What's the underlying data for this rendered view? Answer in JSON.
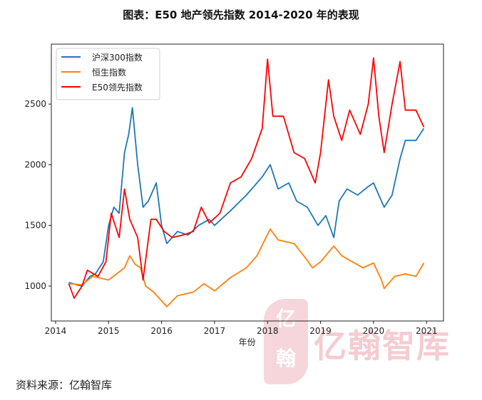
{
  "title": "图表：E50 地产领先指数 2014-2020 年的表现",
  "source": "资料来源：亿翰智库",
  "watermark": {
    "text": "亿翰智库",
    "logo": "亿翰"
  },
  "chart_data": {
    "type": "line",
    "title": "",
    "xlabel": "年份",
    "ylabel": "",
    "xlim": [
      2013.92,
      2021.32
    ],
    "ylim": [
      712,
      2994
    ],
    "xticks": [
      2014,
      2015,
      2016,
      2017,
      2018,
      2019,
      2020,
      2021
    ],
    "yticks": [
      1000,
      1500,
      2000,
      2500
    ],
    "grid": false,
    "legend": "top-left",
    "series": [
      {
        "name": "沪深300指数",
        "color": "#1f77b4",
        "x": [
          2014.25,
          2014.4,
          2014.5,
          2014.65,
          2014.75,
          2014.9,
          2015.0,
          2015.1,
          2015.2,
          2015.3,
          2015.38,
          2015.45,
          2015.55,
          2015.65,
          2015.75,
          2015.9,
          2016.0,
          2016.1,
          2016.3,
          2016.5,
          2016.7,
          2016.9,
          2017.0,
          2017.3,
          2017.6,
          2017.9,
          2018.05,
          2018.2,
          2018.4,
          2018.55,
          2018.75,
          2018.95,
          2019.1,
          2019.25,
          2019.35,
          2019.5,
          2019.7,
          2019.9,
          2020.0,
          2020.1,
          2020.2,
          2020.35,
          2020.5,
          2020.6,
          2020.8,
          2020.95
        ],
        "y": [
          1030,
          1010,
          1000,
          1080,
          1100,
          1200,
          1500,
          1650,
          1600,
          2100,
          2250,
          2470,
          2000,
          1650,
          1700,
          1850,
          1500,
          1350,
          1450,
          1420,
          1500,
          1550,
          1500,
          1620,
          1750,
          1900,
          2000,
          1800,
          1850,
          1700,
          1650,
          1500,
          1580,
          1400,
          1700,
          1800,
          1750,
          1820,
          1850,
          1750,
          1650,
          1750,
          2050,
          2200,
          2200,
          2300
        ]
      },
      {
        "name": "恒生指数",
        "color": "#ff7f0e",
        "x": [
          2014.25,
          2014.5,
          2014.7,
          2015.0,
          2015.3,
          2015.4,
          2015.5,
          2015.6,
          2015.7,
          2015.85,
          2016.1,
          2016.3,
          2016.6,
          2016.8,
          2017.0,
          2017.3,
          2017.6,
          2017.8,
          2018.05,
          2018.2,
          2018.5,
          2018.7,
          2018.85,
          2019.0,
          2019.25,
          2019.4,
          2019.6,
          2019.8,
          2020.0,
          2020.15,
          2020.2,
          2020.4,
          2020.6,
          2020.8,
          2020.95
        ],
        "y": [
          1020,
          1010,
          1080,
          1050,
          1150,
          1250,
          1180,
          1150,
          1000,
          950,
          830,
          920,
          950,
          1020,
          960,
          1070,
          1150,
          1250,
          1470,
          1380,
          1350,
          1240,
          1150,
          1200,
          1330,
          1250,
          1200,
          1150,
          1190,
          1050,
          980,
          1080,
          1100,
          1080,
          1190
        ]
      },
      {
        "name": "E50领先指数",
        "color": "#ff0000",
        "x": [
          2014.25,
          2014.35,
          2014.5,
          2014.6,
          2014.8,
          2014.95,
          2015.05,
          2015.2,
          2015.3,
          2015.4,
          2015.55,
          2015.65,
          2015.8,
          2015.9,
          2016.05,
          2016.2,
          2016.4,
          2016.6,
          2016.75,
          2016.9,
          2017.1,
          2017.3,
          2017.5,
          2017.7,
          2017.9,
          2018.0,
          2018.1,
          2018.3,
          2018.5,
          2018.7,
          2018.9,
          2019.0,
          2019.15,
          2019.25,
          2019.4,
          2019.55,
          2019.75,
          2019.9,
          2020.0,
          2020.1,
          2020.2,
          2020.35,
          2020.5,
          2020.6,
          2020.8,
          2020.95
        ],
        "y": [
          1020,
          900,
          1000,
          1130,
          1080,
          1200,
          1600,
          1400,
          1800,
          1550,
          1400,
          1050,
          1550,
          1550,
          1450,
          1400,
          1420,
          1450,
          1650,
          1520,
          1600,
          1850,
          1900,
          2050,
          2300,
          2870,
          2400,
          2400,
          2100,
          2050,
          1850,
          2100,
          2700,
          2400,
          2200,
          2450,
          2250,
          2500,
          2880,
          2400,
          2100,
          2500,
          2850,
          2450,
          2450,
          2310
        ]
      }
    ]
  }
}
